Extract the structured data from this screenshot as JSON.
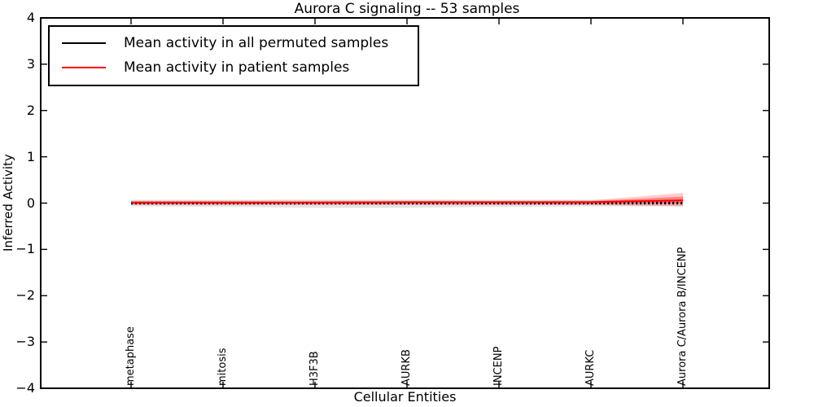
{
  "window": {
    "title": "Aurora C signaling -- 53 samples"
  },
  "chart_data": {
    "type": "line",
    "title": "Aurora C signaling -- 53 samples",
    "xlabel": "Cellular Entities",
    "ylabel": "Inferred Activity",
    "ylim": [
      -4,
      4
    ],
    "yticks": [
      4,
      3,
      2,
      1,
      0,
      -1,
      -2,
      -3,
      -4
    ],
    "ytick_labels": [
      "4",
      "3",
      "2",
      "1",
      "0",
      "−1",
      "−2",
      "−3",
      "−4"
    ],
    "grid": false,
    "categories": [
      "metaphase",
      "mitosis",
      "H3F3B",
      "AURKB",
      "INCENP",
      "AURKC",
      "Aurora C/Aurora B/INCENP"
    ],
    "series": [
      {
        "name": "Mean activity in all permuted samples",
        "color": "#000000",
        "style": "dashed",
        "values": [
          0,
          0,
          0,
          0,
          0,
          0,
          0
        ],
        "band_upper": [
          0.07,
          0.07,
          0.08,
          0.08,
          0.07,
          0.07,
          0.07
        ],
        "band_lower": [
          -0.07,
          -0.08,
          -0.1,
          -0.1,
          -0.08,
          -0.07,
          -0.07
        ]
      },
      {
        "name": "Mean activity in patient samples",
        "color": "#ff0000",
        "style": "solid",
        "values": [
          0.01,
          0.01,
          0.01,
          0.02,
          0.02,
          0.02,
          0.06
        ],
        "band_upper": [
          0.05,
          0.05,
          0.05,
          0.05,
          0.05,
          0.06,
          0.22
        ],
        "band_lower": [
          -0.04,
          -0.04,
          -0.04,
          -0.04,
          -0.04,
          -0.04,
          -0.07
        ],
        "band_inner_upper": [
          0.03,
          0.03,
          0.03,
          0.03,
          0.03,
          0.04,
          0.14
        ],
        "band_inner_lower": [
          -0.02,
          -0.02,
          -0.02,
          -0.02,
          -0.02,
          -0.02,
          -0.01
        ]
      }
    ],
    "legend": {
      "position": "upper left",
      "entries": [
        {
          "label": "Mean activity in all permuted samples",
          "color": "#000000"
        },
        {
          "label": "Mean activity in patient samples",
          "color": "#ff0000"
        }
      ]
    },
    "colors": {
      "permuted_band": "#e3e3e3",
      "patient_band_outer": "#ff0000",
      "patient_band_outer_alpha": 0.2,
      "patient_band_inner_alpha": 0.35,
      "frame": "#000000",
      "background": "#ffffff"
    }
  }
}
